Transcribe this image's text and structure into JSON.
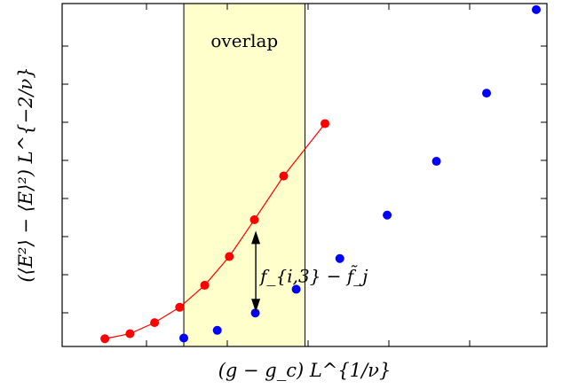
{
  "chart_data": {
    "type": "scatter",
    "title": "",
    "xlabel": "(g − g_c) L^{1/ν}",
    "ylabel": "(⟨E²⟩ − ⟨E⟩²) L^{−2/ν}",
    "xlim": [
      0,
      1
    ],
    "ylim": [
      0,
      1
    ],
    "tick_labels": false,
    "grid": false,
    "legend": "none",
    "region": {
      "label": "overlap",
      "x_range": [
        0.241,
        0.502
      ],
      "color": "#ffffcc"
    },
    "annotation": {
      "label": "f_{i,3} − f̃_j",
      "x": 0.396,
      "y_from": 0.336,
      "y_to": 0.087
    },
    "series": [
      {
        "color": "#ff0000",
        "connected": true,
        "x": [
          0.071,
          0.125,
          0.178,
          0.232,
          0.286,
          0.339,
          0.393,
          0.456,
          0.545
        ],
        "y": [
          0.01,
          0.025,
          0.058,
          0.104,
          0.17,
          0.256,
          0.366,
          0.497,
          0.654
        ]
      },
      {
        "color": "#0000ff",
        "connected": false,
        "x": [
          0.241,
          0.313,
          0.395,
          0.483,
          0.577,
          0.679,
          0.785,
          0.893,
          1.0
        ],
        "y": [
          0.012,
          0.035,
          0.087,
          0.158,
          0.25,
          0.38,
          0.541,
          0.745,
          0.995
        ]
      }
    ]
  }
}
